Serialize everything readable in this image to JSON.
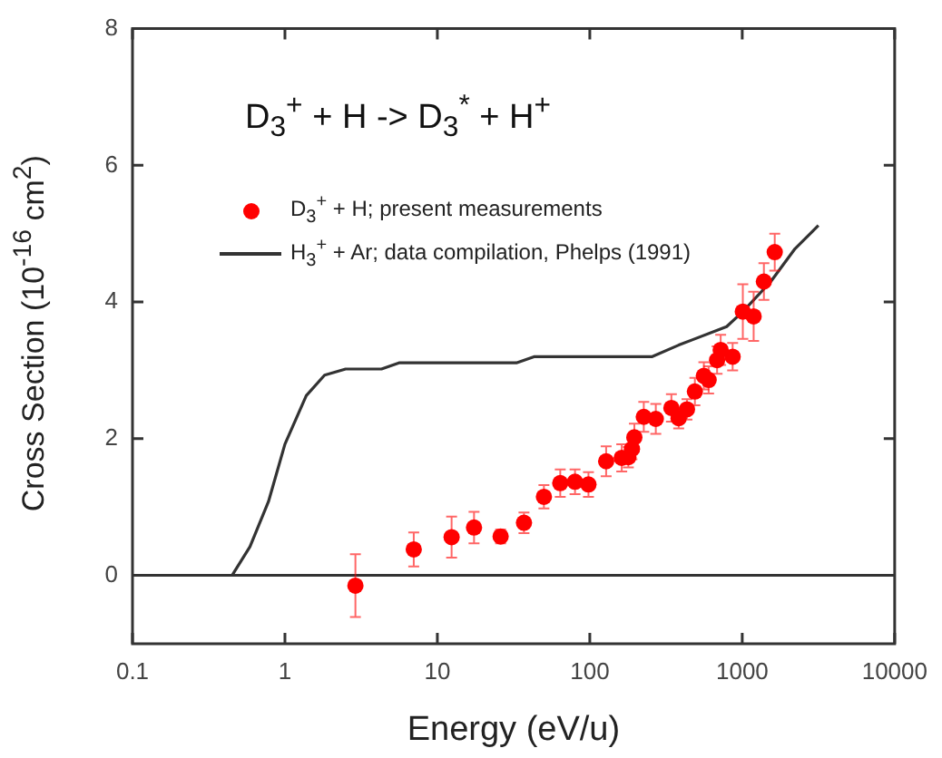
{
  "chart_data": {
    "type": "scatter",
    "xlabel": "Energy (eV/u)",
    "ylabel": "Cross Section (10$^{-16}$ cm$^{2}$)",
    "annotations": [
      "D$_{3}$$^{+}$ + H -> D$_{3}$$^{*}$ + H$^{+}$"
    ],
    "log": "x",
    "xlim": [
      0.1,
      10000
    ],
    "xticks": [
      0.1,
      1,
      10,
      100,
      1000,
      10000
    ],
    "ylim": [
      -1,
      8
    ],
    "yticks": [
      0,
      2,
      4,
      6,
      8
    ],
    "grid": false,
    "legend": "top left",
    "marker": "circle",
    "ref_lines": [
      {
        "axis": "y",
        "value": 0,
        "color": "#333333"
      }
    ],
    "series": [
      {
        "name": "D$_{3}$$^{+}$ + H; present measurements",
        "color": "#ff0000",
        "x": [
          2.9,
          7.0,
          12.4,
          17.4,
          26,
          37,
          50,
          64,
          80,
          98,
          128,
          162,
          179,
          189,
          196,
          226,
          271,
          343,
          383,
          434,
          489,
          560,
          602,
          684,
          722,
          865,
          1009,
          1188,
          1387,
          1634
        ],
        "values": [
          -0.15,
          0.38,
          0.56,
          0.7,
          0.57,
          0.77,
          1.15,
          1.35,
          1.37,
          1.33,
          1.67,
          1.72,
          1.73,
          1.85,
          2.02,
          2.32,
          2.29,
          2.45,
          2.3,
          2.43,
          2.69,
          2.92,
          2.86,
          3.15,
          3.3,
          3.2,
          3.86,
          3.79,
          4.3,
          4.73
        ],
        "errors": [
          0.46,
          0.25,
          0.3,
          0.23,
          0.1,
          0.15,
          0.17,
          0.2,
          0.18,
          0.18,
          0.22,
          0.2,
          0.15,
          0.15,
          0.2,
          0.22,
          0.22,
          0.2,
          0.15,
          0.15,
          0.2,
          0.2,
          0.2,
          0.2,
          0.22,
          0.2,
          0.4,
          0.36,
          0.27,
          0.27
        ]
      },
      {
        "name": "H$_{3}$$^{+}$ + Ar; data compilation, Phelps (1991)",
        "type": "line",
        "color": "#333333",
        "marker": "none",
        "line_style": "solid",
        "x": [
          0.45,
          0.59,
          0.78,
          1.0,
          1.38,
          1.82,
          2.5,
          4.3,
          5.6,
          33,
          43,
          255,
          383,
          790,
          1010,
          1540,
          2220,
          3160
        ],
        "values": [
          0,
          0.42,
          1.08,
          1.92,
          2.63,
          2.93,
          3.02,
          3.02,
          3.11,
          3.11,
          3.2,
          3.2,
          3.37,
          3.64,
          3.86,
          4.3,
          4.78,
          5.12
        ]
      }
    ]
  }
}
